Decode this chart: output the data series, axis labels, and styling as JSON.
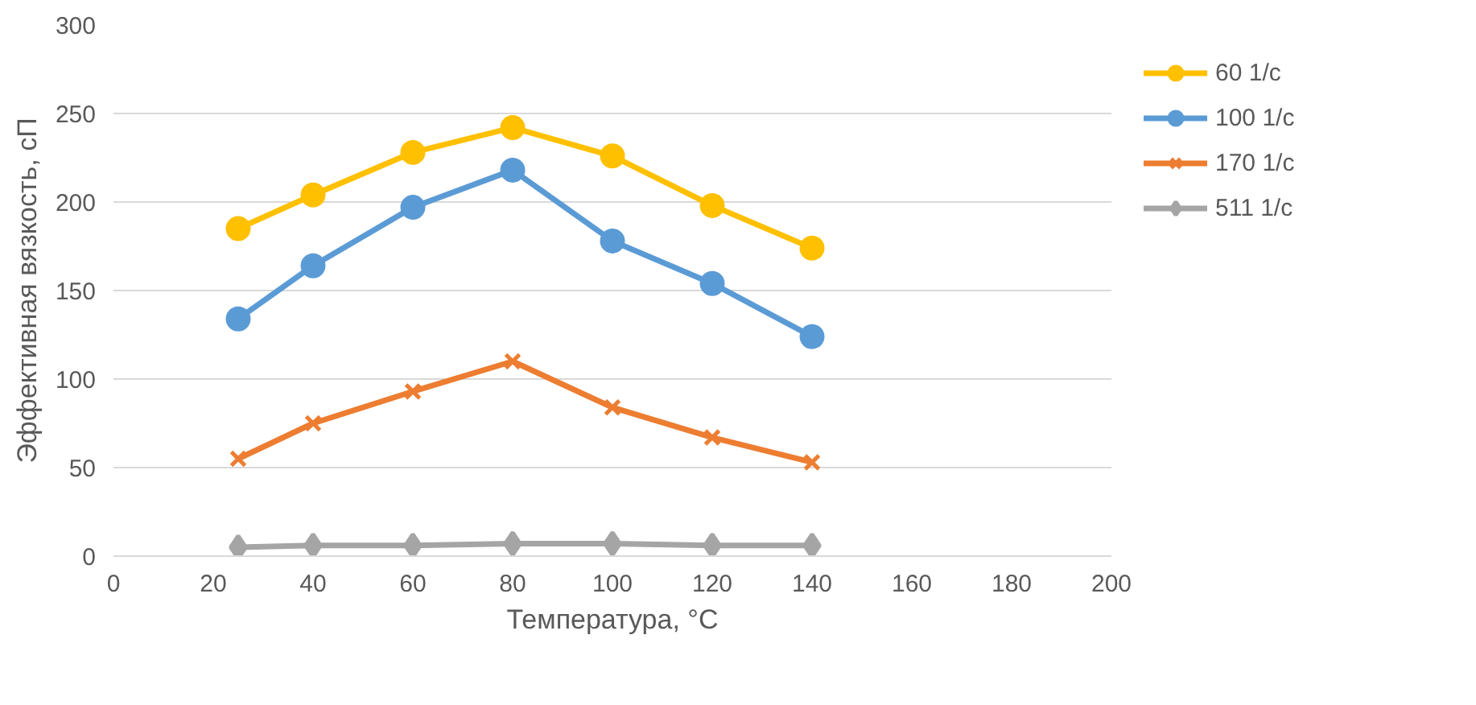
{
  "chart_data": {
    "type": "line",
    "xlabel": "Температура, °C",
    "ylabel": "Эффективная вязкость, сП",
    "x": [
      25,
      40,
      60,
      80,
      100,
      120,
      140
    ],
    "xlim": [
      0,
      200
    ],
    "xticks": [
      0,
      20,
      40,
      60,
      80,
      100,
      120,
      140,
      160,
      180,
      200
    ],
    "ylim": [
      0,
      300
    ],
    "yticks": [
      0,
      50,
      100,
      150,
      200,
      250,
      300
    ],
    "grid": "y",
    "legend": "right",
    "line_style": "solid",
    "series": [
      {
        "name": "60 1/c",
        "color": "#ffc000",
        "marker": "circle",
        "values": [
          185,
          204,
          228,
          242,
          226,
          198,
          174
        ]
      },
      {
        "name": "100 1/c",
        "color": "#5b9bd5",
        "marker": "circle",
        "values": [
          134,
          164,
          197,
          218,
          178,
          154,
          124
        ]
      },
      {
        "name": "170 1/c",
        "color": "#ed7d31",
        "marker": "cross",
        "values": [
          55,
          75,
          93,
          110,
          84,
          67,
          53
        ]
      },
      {
        "name": "511 1/c",
        "color": "#a5a5a5",
        "marker": "diamond",
        "values": [
          5,
          6,
          6,
          7,
          7,
          6,
          6
        ]
      }
    ]
  }
}
